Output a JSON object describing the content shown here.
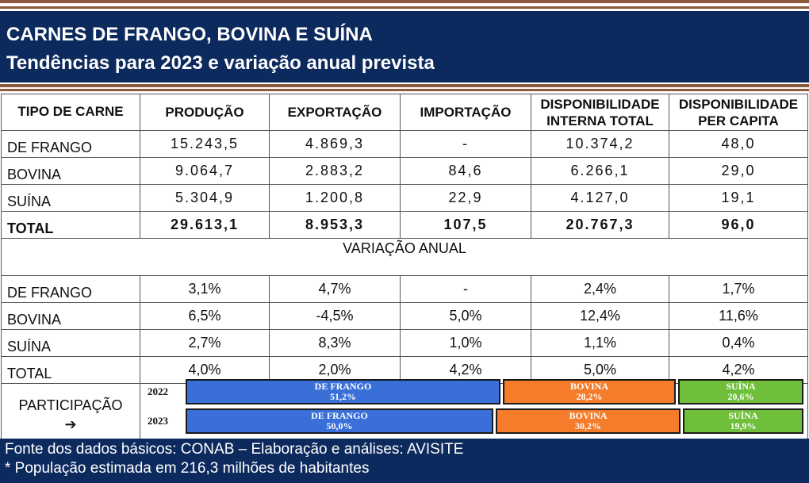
{
  "header": {
    "title": "CARNES DE FRANGO, BOVINA E SUÍNA",
    "subtitle": "Tendências para 2023 e variação anual prevista"
  },
  "columns": [
    "TIPO DE CARNE",
    "PRODUÇÃO",
    "EXPORTAÇÃO",
    "IMPORTAÇÃO",
    "DISPONIBILIDADE INTERNA TOTAL",
    "DISPONIBILIDADE PER CAPITA"
  ],
  "columns_lines": {
    "c4a": "DISPONIBILIDADE",
    "c4b": "INTERNA TOTAL",
    "c5a": "DISPONIBILIDADE",
    "c5b": "PER CAPITA"
  },
  "rows": [
    {
      "tipo": "DE FRANGO",
      "producao": "15.243,5",
      "exportacao": "4.869,3",
      "importacao": "-",
      "disp_total": "10.374,2",
      "per_capita": "48,0"
    },
    {
      "tipo": "BOVINA",
      "producao": "9.064,7",
      "exportacao": "2.883,2",
      "importacao": "84,6",
      "disp_total": "6.266,1",
      "per_capita": "29,0"
    },
    {
      "tipo": "SUÍNA",
      "producao": "5.304,9",
      "exportacao": "1.200,8",
      "importacao": "22,9",
      "disp_total": "4.127,0",
      "per_capita": "19,1"
    },
    {
      "tipo": "TOTAL",
      "producao": "29.613,1",
      "exportacao": "8.953,3",
      "importacao": "107,5",
      "disp_total": "20.767,3",
      "per_capita": "96,0"
    }
  ],
  "variacao_title": "VARIAÇÃO ANUAL",
  "variacao": [
    {
      "tipo": "DE FRANGO",
      "producao": "3,1%",
      "exportacao": "4,7%",
      "importacao": "-",
      "disp_total": "2,4%",
      "per_capita": "1,7%"
    },
    {
      "tipo": "BOVINA",
      "producao": "6,5%",
      "exportacao": "-4,5%",
      "importacao": "5,0%",
      "disp_total": "12,4%",
      "per_capita": "11,6%"
    },
    {
      "tipo": "SUÍNA",
      "producao": "2,7%",
      "exportacao": "8,3%",
      "importacao": "1,0%",
      "disp_total": "1,1%",
      "per_capita": "0,4%"
    },
    {
      "tipo": "TOTAL",
      "producao": "4,0%",
      "exportacao": "2,0%",
      "importacao": "4,2%",
      "disp_total": "5,0%",
      "per_capita": "4,2%"
    }
  ],
  "participacao": {
    "label": "PARTICIPAÇÃO",
    "arrow": "➔",
    "years": [
      {
        "year": "2022",
        "segments": [
          {
            "name": "DE FRANGO",
            "pct_label": "51,2%",
            "share": 51.2
          },
          {
            "name": "BOVINA",
            "pct_label": "28,2%",
            "share": 28.2
          },
          {
            "name": "SUÍNA",
            "pct_label": "20,6%",
            "share": 20.6
          }
        ]
      },
      {
        "year": "2023",
        "segments": [
          {
            "name": "DE FRANGO",
            "pct_label": "50,0%",
            "share": 50.0
          },
          {
            "name": "BOVINA",
            "pct_label": "30,2%",
            "share": 30.2
          },
          {
            "name": "SUÍNA",
            "pct_label": "19,9%",
            "share": 19.9
          }
        ]
      }
    ]
  },
  "colors": {
    "navy": "#0d2a5e",
    "brown": "#8b5a3c",
    "blue": "#3a6fd8",
    "orange": "#f47c2a",
    "green": "#6fbf3a",
    "negative": "#e00000"
  },
  "footer": {
    "line1": "Fonte dos dados básicos: CONAB – Elaboração e análises: AVISITE",
    "line2": "* População estimada em 216,3 milhões de habitantes"
  }
}
